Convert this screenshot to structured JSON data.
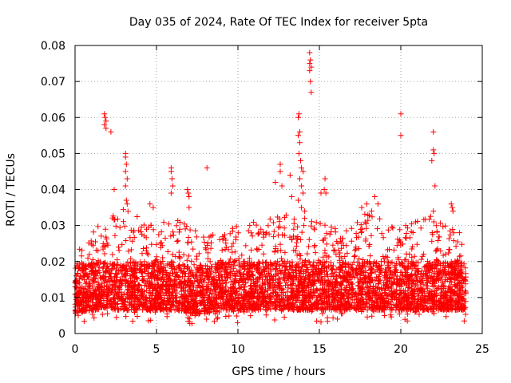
{
  "chart_data": {
    "type": "scatter",
    "title": "Day 035 of 2024, Rate Of TEC Index for receiver 5pta",
    "xlabel": "GPS time / hours",
    "ylabel": "ROTI / TECUs",
    "xlim": [
      0,
      25
    ],
    "ylim": [
      0,
      0.08
    ],
    "x_ticks": [
      0,
      5,
      10,
      15,
      20,
      25
    ],
    "y_ticks": [
      0,
      0.01,
      0.02,
      0.03,
      0.04,
      0.05,
      0.06,
      0.07,
      0.08
    ],
    "x_tick_labels": [
      "0",
      "5",
      "10",
      "15",
      "20",
      "25"
    ],
    "y_tick_labels": [
      "0",
      "0.01",
      "0.02",
      "0.03",
      "0.04",
      "0.05",
      "0.06",
      "0.07",
      "0.08"
    ],
    "grid": true,
    "marker": "plus",
    "color": "#ff0000",
    "background": "#ffffff",
    "outlier_points": [
      {
        "x": 1.8,
        "y": 0.061
      },
      {
        "x": 1.85,
        "y": 0.06
      },
      {
        "x": 1.9,
        "y": 0.059
      },
      {
        "x": 1.8,
        "y": 0.058
      },
      {
        "x": 1.9,
        "y": 0.057
      },
      {
        "x": 2.2,
        "y": 0.056
      },
      {
        "x": 2.4,
        "y": 0.04
      },
      {
        "x": 3.1,
        "y": 0.05
      },
      {
        "x": 3.1,
        "y": 0.049
      },
      {
        "x": 3.15,
        "y": 0.047
      },
      {
        "x": 3.1,
        "y": 0.045
      },
      {
        "x": 3.2,
        "y": 0.043
      },
      {
        "x": 3.1,
        "y": 0.041
      },
      {
        "x": 3.15,
        "y": 0.037
      },
      {
        "x": 3.2,
        "y": 0.036
      },
      {
        "x": 4.6,
        "y": 0.036
      },
      {
        "x": 4.8,
        "y": 0.035
      },
      {
        "x": 5.9,
        "y": 0.046
      },
      {
        "x": 5.9,
        "y": 0.045
      },
      {
        "x": 5.95,
        "y": 0.043
      },
      {
        "x": 6.0,
        "y": 0.041
      },
      {
        "x": 5.9,
        "y": 0.039
      },
      {
        "x": 6.9,
        "y": 0.04
      },
      {
        "x": 6.95,
        "y": 0.039
      },
      {
        "x": 7.0,
        "y": 0.038
      },
      {
        "x": 7.0,
        "y": 0.035
      },
      {
        "x": 8.1,
        "y": 0.046
      },
      {
        "x": 12.3,
        "y": 0.042
      },
      {
        "x": 12.6,
        "y": 0.047
      },
      {
        "x": 12.6,
        "y": 0.045
      },
      {
        "x": 12.7,
        "y": 0.041
      },
      {
        "x": 13.2,
        "y": 0.044
      },
      {
        "x": 13.3,
        "y": 0.038
      },
      {
        "x": 13.7,
        "y": 0.06
      },
      {
        "x": 13.75,
        "y": 0.061
      },
      {
        "x": 13.8,
        "y": 0.056
      },
      {
        "x": 13.7,
        "y": 0.055
      },
      {
        "x": 13.8,
        "y": 0.053
      },
      {
        "x": 13.75,
        "y": 0.05
      },
      {
        "x": 13.85,
        "y": 0.048
      },
      {
        "x": 13.9,
        "y": 0.046
      },
      {
        "x": 14.0,
        "y": 0.045
      },
      {
        "x": 13.8,
        "y": 0.043
      },
      {
        "x": 13.9,
        "y": 0.041
      },
      {
        "x": 14.0,
        "y": 0.039
      },
      {
        "x": 13.7,
        "y": 0.037
      },
      {
        "x": 13.9,
        "y": 0.035
      },
      {
        "x": 14.1,
        "y": 0.034
      },
      {
        "x": 14.1,
        "y": 0.032
      },
      {
        "x": 14.05,
        "y": 0.03
      },
      {
        "x": 14.4,
        "y": 0.078
      },
      {
        "x": 14.45,
        "y": 0.076
      },
      {
        "x": 14.4,
        "y": 0.075
      },
      {
        "x": 14.5,
        "y": 0.074
      },
      {
        "x": 14.4,
        "y": 0.073
      },
      {
        "x": 14.45,
        "y": 0.07
      },
      {
        "x": 14.5,
        "y": 0.067
      },
      {
        "x": 15.1,
        "y": 0.039
      },
      {
        "x": 15.3,
        "y": 0.04
      },
      {
        "x": 15.35,
        "y": 0.043
      },
      {
        "x": 15.4,
        "y": 0.039
      },
      {
        "x": 17.6,
        "y": 0.035
      },
      {
        "x": 17.9,
        "y": 0.036
      },
      {
        "x": 18.2,
        "y": 0.034
      },
      {
        "x": 18.4,
        "y": 0.038
      },
      {
        "x": 18.6,
        "y": 0.036
      },
      {
        "x": 20.0,
        "y": 0.061
      },
      {
        "x": 20.0,
        "y": 0.055
      },
      {
        "x": 20.3,
        "y": 0.03
      },
      {
        "x": 20.9,
        "y": 0.031
      },
      {
        "x": 22.0,
        "y": 0.056
      },
      {
        "x": 22.0,
        "y": 0.051
      },
      {
        "x": 22.05,
        "y": 0.05
      },
      {
        "x": 21.9,
        "y": 0.048
      },
      {
        "x": 22.1,
        "y": 0.041
      },
      {
        "x": 22.0,
        "y": 0.034
      },
      {
        "x": 23.1,
        "y": 0.036
      },
      {
        "x": 23.15,
        "y": 0.035
      },
      {
        "x": 23.2,
        "y": 0.034
      },
      {
        "x": 23.6,
        "y": 0.028
      }
    ],
    "baseline_profile": [
      {
        "x": 0,
        "lo": 0.002,
        "hi": 0.022
      },
      {
        "x": 1,
        "lo": 0.003,
        "hi": 0.028
      },
      {
        "x": 2,
        "lo": 0.003,
        "hi": 0.033
      },
      {
        "x": 3,
        "lo": 0.003,
        "hi": 0.035
      },
      {
        "x": 4,
        "lo": 0.003,
        "hi": 0.033
      },
      {
        "x": 5,
        "lo": 0.003,
        "hi": 0.03
      },
      {
        "x": 6,
        "lo": 0.003,
        "hi": 0.032
      },
      {
        "x": 7,
        "lo": 0.002,
        "hi": 0.03
      },
      {
        "x": 8,
        "lo": 0.002,
        "hi": 0.028
      },
      {
        "x": 9,
        "lo": 0.003,
        "hi": 0.028
      },
      {
        "x": 10,
        "lo": 0.003,
        "hi": 0.03
      },
      {
        "x": 11,
        "lo": 0.003,
        "hi": 0.031
      },
      {
        "x": 12,
        "lo": 0.003,
        "hi": 0.032
      },
      {
        "x": 13,
        "lo": 0.003,
        "hi": 0.034
      },
      {
        "x": 14,
        "lo": 0.003,
        "hi": 0.033
      },
      {
        "x": 15,
        "lo": 0.003,
        "hi": 0.031
      },
      {
        "x": 16,
        "lo": 0.003,
        "hi": 0.03
      },
      {
        "x": 17,
        "lo": 0.003,
        "hi": 0.031
      },
      {
        "x": 18,
        "lo": 0.003,
        "hi": 0.034
      },
      {
        "x": 19,
        "lo": 0.003,
        "hi": 0.032
      },
      {
        "x": 20,
        "lo": 0.003,
        "hi": 0.03
      },
      {
        "x": 21,
        "lo": 0.003,
        "hi": 0.032
      },
      {
        "x": 22,
        "lo": 0.003,
        "hi": 0.033
      },
      {
        "x": 23,
        "lo": 0.003,
        "hi": 0.03
      },
      {
        "x": 24,
        "lo": 0.003,
        "hi": 0.025
      }
    ]
  }
}
